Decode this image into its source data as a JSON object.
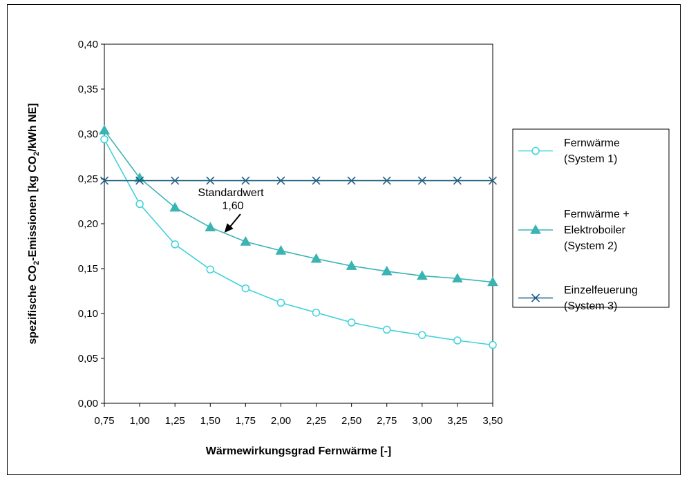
{
  "chart_data": {
    "type": "line",
    "title": "",
    "xlabel": "Wärmewirkungsgrad Fernwärme [-]",
    "ylabel": {
      "pre": "spezifische CO",
      "sub": "2",
      "mid": "-Emissionen [kg CO",
      "sub2": "2",
      "post": "/kWh NE]"
    },
    "x": [
      0.75,
      1.0,
      1.25,
      1.5,
      1.75,
      2.0,
      2.25,
      2.5,
      2.75,
      3.0,
      3.25,
      3.5
    ],
    "x_tick_labels": [
      "0,75",
      "1,00",
      "1,25",
      "1,50",
      "1,75",
      "2,00",
      "2,25",
      "2,50",
      "2,75",
      "3,00",
      "3,25",
      "3,50"
    ],
    "ylim": [
      0,
      0.4
    ],
    "y_ticks": [
      0.0,
      0.05,
      0.1,
      0.15,
      0.2,
      0.25,
      0.3,
      0.35,
      0.4
    ],
    "y_tick_labels": [
      "0,00",
      "0,05",
      "0,10",
      "0,15",
      "0,20",
      "0,25",
      "0,30",
      "0,35",
      "0,40"
    ],
    "grid": false,
    "legend_position": "right",
    "series": [
      {
        "name": "Fernwärme (System 1)",
        "legend_lines": [
          "Fernwärme",
          "(System 1)"
        ],
        "marker": "circle-open",
        "color": "#3ED2DC",
        "values": [
          0.294,
          0.222,
          0.177,
          0.149,
          0.128,
          0.112,
          0.101,
          0.09,
          0.082,
          0.076,
          0.07,
          0.065
        ]
      },
      {
        "name": "Fernwärme + Elektroboiler (System 2)",
        "legend_lines": [
          "Fernwärme +",
          "Elektroboiler",
          "(System 2)"
        ],
        "marker": "triangle",
        "color": "#3AB3B3",
        "values": [
          0.304,
          0.251,
          0.218,
          0.196,
          0.18,
          0.17,
          0.161,
          0.153,
          0.147,
          0.142,
          0.139,
          0.135
        ]
      },
      {
        "name": "Einzelfeuerung (System 3)",
        "legend_lines": [
          "Einzelfeuerung",
          "(System 3)"
        ],
        "marker": "x",
        "color": "#1F5F82",
        "values": [
          0.248,
          0.248,
          0.248,
          0.248,
          0.248,
          0.248,
          0.248,
          0.248,
          0.248,
          0.248,
          0.248,
          0.248
        ]
      }
    ],
    "annotation": {
      "lines": [
        "Standardwert",
        "1,60"
      ],
      "x": 1.6,
      "y": 0.19
    }
  }
}
